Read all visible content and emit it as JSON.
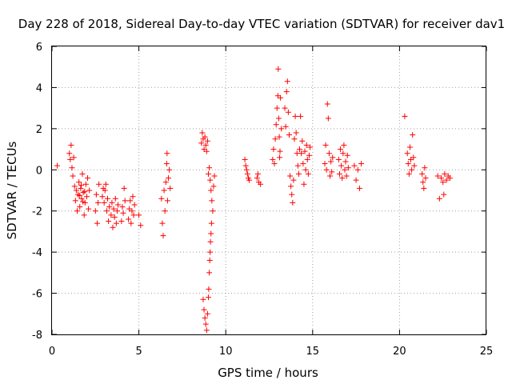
{
  "chart_data": {
    "type": "scatter",
    "title": "Day 228 of 2018, Sidereal Day-to-day VTEC variation (SDTVAR) for receiver dav1",
    "xlabel": "GPS time / hours",
    "ylabel": "SDTVAR / TECUs",
    "xlim": [
      0,
      25
    ],
    "ylim": [
      -8,
      6
    ],
    "xticks": [
      "0",
      "5",
      "10",
      "15",
      "20",
      "25"
    ],
    "yticks": [
      "-8",
      "-6",
      "-4",
      "-2",
      "0",
      "2",
      "4",
      "6"
    ],
    "grid": true,
    "legend": "none",
    "marker": "+",
    "marker_color": "#ff0000",
    "series": [
      {
        "name": "SDTVAR",
        "points": [
          [
            0.3,
            0.2
          ],
          [
            1.0,
            0.8
          ],
          [
            1.05,
            0.5
          ],
          [
            1.1,
            1.2
          ],
          [
            1.15,
            0.1
          ],
          [
            1.2,
            -0.3
          ],
          [
            1.25,
            0.6
          ],
          [
            1.3,
            -0.8
          ],
          [
            1.35,
            -1.5
          ],
          [
            1.4,
            -1.0
          ],
          [
            1.45,
            -2.0
          ],
          [
            1.5,
            -1.2
          ],
          [
            1.55,
            -0.6
          ],
          [
            1.6,
            -1.8
          ],
          [
            1.65,
            -0.9
          ],
          [
            1.7,
            -1.4
          ],
          [
            1.75,
            -0.2
          ],
          [
            1.8,
            -1.1
          ],
          [
            1.85,
            -2.2
          ],
          [
            1.9,
            -1.6
          ],
          [
            1.95,
            -0.7
          ],
          [
            2.0,
            -1.3
          ],
          [
            2.05,
            -0.4
          ],
          [
            2.1,
            -1.9
          ],
          [
            2.15,
            -1.0
          ],
          [
            1.58,
            -1.25
          ],
          [
            1.68,
            -0.75
          ],
          [
            1.78,
            -1.55
          ],
          [
            1.88,
            -1.05
          ],
          [
            2.5,
            -2.0
          ],
          [
            2.55,
            -1.2
          ],
          [
            2.6,
            -2.6
          ],
          [
            2.65,
            -1.6
          ],
          [
            2.7,
            -0.7
          ],
          [
            2.9,
            -1.3
          ],
          [
            2.95,
            -0.9
          ],
          [
            3.0,
            -1.6
          ],
          [
            3.05,
            -1.0
          ],
          [
            3.1,
            -0.7
          ],
          [
            3.15,
            -2.0
          ],
          [
            3.2,
            -1.4
          ],
          [
            3.25,
            -2.5
          ],
          [
            3.3,
            -1.8
          ],
          [
            3.4,
            -2.2
          ],
          [
            3.45,
            -1.6
          ],
          [
            3.5,
            -2.8
          ],
          [
            3.55,
            -1.9
          ],
          [
            3.6,
            -2.3
          ],
          [
            3.65,
            -1.4
          ],
          [
            3.7,
            -2.6
          ],
          [
            3.75,
            -2.0
          ],
          [
            3.8,
            -1.7
          ],
          [
            4.0,
            -2.5
          ],
          [
            4.05,
            -1.8
          ],
          [
            4.1,
            -2.1
          ],
          [
            4.15,
            -0.9
          ],
          [
            4.2,
            -1.5
          ],
          [
            4.4,
            -2.4
          ],
          [
            4.45,
            -1.9
          ],
          [
            4.5,
            -1.5
          ],
          [
            4.55,
            -2.6
          ],
          [
            4.6,
            -2.0
          ],
          [
            4.65,
            -1.3
          ],
          [
            4.7,
            -2.2
          ],
          [
            4.75,
            -1.7
          ],
          [
            5.0,
            -2.2
          ],
          [
            5.1,
            -2.7
          ],
          [
            6.3,
            -1.4
          ],
          [
            6.35,
            -2.6
          ],
          [
            6.4,
            -3.2
          ],
          [
            6.45,
            -1.0
          ],
          [
            6.5,
            -2.0
          ],
          [
            6.55,
            -0.6
          ],
          [
            6.6,
            0.3
          ],
          [
            6.62,
            0.8
          ],
          [
            6.65,
            -1.5
          ],
          [
            6.7,
            -0.4
          ],
          [
            6.75,
            0.0
          ],
          [
            6.8,
            -0.9
          ],
          [
            8.6,
            1.3
          ],
          [
            8.65,
            1.8
          ],
          [
            8.7,
            1.5
          ],
          [
            8.75,
            1.0
          ],
          [
            8.8,
            1.6
          ],
          [
            8.85,
            1.2
          ],
          [
            8.9,
            0.9
          ],
          [
            8.95,
            1.4
          ],
          [
            8.7,
            -6.3
          ],
          [
            8.75,
            -6.8
          ],
          [
            8.8,
            -7.2
          ],
          [
            8.85,
            -7.5
          ],
          [
            8.9,
            -7.8
          ],
          [
            8.95,
            -7.0
          ],
          [
            9.0,
            -6.2
          ],
          [
            9.02,
            -5.8
          ],
          [
            9.05,
            -5.0
          ],
          [
            9.08,
            -4.4
          ],
          [
            9.1,
            -4.0
          ],
          [
            9.12,
            -3.5
          ],
          [
            9.15,
            -3.1
          ],
          [
            9.18,
            -2.6
          ],
          [
            9.0,
            -0.2
          ],
          [
            9.05,
            0.1
          ],
          [
            9.1,
            -0.5
          ],
          [
            9.15,
            -1.0
          ],
          [
            9.2,
            -1.5
          ],
          [
            9.25,
            -2.0
          ],
          [
            9.3,
            -0.8
          ],
          [
            9.35,
            -0.3
          ],
          [
            11.1,
            0.5
          ],
          [
            11.15,
            0.2
          ],
          [
            11.2,
            0.0
          ],
          [
            11.25,
            -0.2
          ],
          [
            11.3,
            -0.4
          ],
          [
            11.35,
            -0.5
          ],
          [
            11.8,
            -0.4
          ],
          [
            11.85,
            -0.2
          ],
          [
            11.9,
            -0.6
          ],
          [
            12.0,
            -0.7
          ],
          [
            12.7,
            0.5
          ],
          [
            12.75,
            1.0
          ],
          [
            12.8,
            0.3
          ],
          [
            12.85,
            1.5
          ],
          [
            12.9,
            2.2
          ],
          [
            12.95,
            3.0
          ],
          [
            13.0,
            3.6
          ],
          [
            13.02,
            4.9
          ],
          [
            13.05,
            2.5
          ],
          [
            13.08,
            1.6
          ],
          [
            13.1,
            0.6
          ],
          [
            13.12,
            0.9
          ],
          [
            13.15,
            3.5
          ],
          [
            13.2,
            2.0
          ],
          [
            13.4,
            3.0
          ],
          [
            13.45,
            2.1
          ],
          [
            13.5,
            3.8
          ],
          [
            13.55,
            4.3
          ],
          [
            13.6,
            2.8
          ],
          [
            13.65,
            1.7
          ],
          [
            13.7,
            -0.3
          ],
          [
            13.75,
            -0.8
          ],
          [
            13.8,
            -1.2
          ],
          [
            13.85,
            -1.6
          ],
          [
            13.9,
            -0.5
          ],
          [
            13.95,
            1.5
          ],
          [
            14.0,
            2.6
          ],
          [
            14.05,
            1.8
          ],
          [
            14.1,
            0.8
          ],
          [
            14.15,
            0.2
          ],
          [
            14.2,
            -0.2
          ],
          [
            14.25,
            1.0
          ],
          [
            14.3,
            2.6
          ],
          [
            14.35,
            0.8
          ],
          [
            14.4,
            1.4
          ],
          [
            14.45,
            0.3
          ],
          [
            14.5,
            -0.7
          ],
          [
            14.55,
            0.9
          ],
          [
            14.6,
            0.0
          ],
          [
            14.65,
            1.2
          ],
          [
            14.7,
            0.5
          ],
          [
            14.75,
            -0.2
          ],
          [
            14.8,
            0.7
          ],
          [
            14.85,
            1.1
          ],
          [
            15.7,
            0.3
          ],
          [
            15.75,
            1.2
          ],
          [
            15.8,
            0.0
          ],
          [
            15.85,
            3.2
          ],
          [
            15.9,
            2.5
          ],
          [
            15.95,
            0.8
          ],
          [
            16.0,
            -0.3
          ],
          [
            16.05,
            0.4
          ],
          [
            16.1,
            -0.1
          ],
          [
            16.15,
            0.6
          ],
          [
            16.5,
            0.5
          ],
          [
            16.55,
            -0.2
          ],
          [
            16.6,
            1.0
          ],
          [
            16.65,
            0.2
          ],
          [
            16.7,
            -0.4
          ],
          [
            16.75,
            0.8
          ],
          [
            16.8,
            1.2
          ],
          [
            16.85,
            0.0
          ],
          [
            16.9,
            0.4
          ],
          [
            16.95,
            -0.3
          ],
          [
            17.0,
            0.7
          ],
          [
            17.05,
            0.1
          ],
          [
            17.4,
            0.2
          ],
          [
            17.5,
            -0.5
          ],
          [
            17.6,
            0.0
          ],
          [
            17.7,
            -0.9
          ],
          [
            17.8,
            0.3
          ],
          [
            20.3,
            2.6
          ],
          [
            20.45,
            0.8
          ],
          [
            20.5,
            0.3
          ],
          [
            20.55,
            -0.2
          ],
          [
            20.6,
            1.1
          ],
          [
            20.65,
            0.5
          ],
          [
            20.7,
            0.0
          ],
          [
            20.75,
            1.7
          ],
          [
            20.8,
            0.6
          ],
          [
            20.85,
            0.2
          ],
          [
            21.3,
            -0.2
          ],
          [
            21.35,
            -0.6
          ],
          [
            21.4,
            -0.9
          ],
          [
            21.45,
            0.1
          ],
          [
            21.5,
            -0.4
          ],
          [
            22.2,
            -0.3
          ],
          [
            22.3,
            -1.4
          ],
          [
            22.4,
            -0.4
          ],
          [
            22.5,
            -0.6
          ],
          [
            22.55,
            -1.2
          ],
          [
            22.6,
            -0.2
          ],
          [
            22.7,
            -0.5
          ],
          [
            22.8,
            -0.3
          ],
          [
            22.9,
            -0.4
          ]
        ]
      }
    ]
  }
}
